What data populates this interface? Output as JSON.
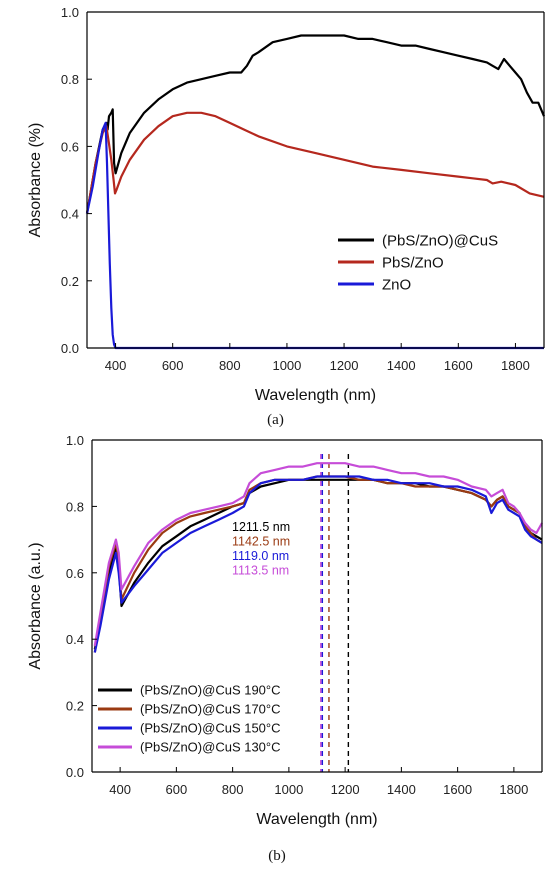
{
  "chart_data": [
    {
      "type": "line",
      "panel_label": "(a)",
      "xlabel": "Wavelength (nm)",
      "ylabel": "Absorbance (%)",
      "xlim": [
        300,
        1900
      ],
      "ylim": [
        0.0,
        1.0
      ],
      "xticks": [
        400,
        600,
        800,
        1000,
        1200,
        1400,
        1600,
        1800
      ],
      "yticks": [
        0.0,
        0.2,
        0.4,
        0.6,
        0.8,
        1.0
      ],
      "legend_position": "center-right",
      "series": [
        {
          "name": "(PbS/ZnO)@CuS",
          "color": "#000000",
          "x": [
            300,
            330,
            355,
            368,
            372,
            377,
            385,
            390,
            395,
            400,
            420,
            450,
            500,
            550,
            600,
            650,
            700,
            750,
            800,
            840,
            860,
            880,
            900,
            950,
            1000,
            1050,
            1100,
            1150,
            1200,
            1250,
            1300,
            1350,
            1400,
            1450,
            1500,
            1550,
            1600,
            1650,
            1700,
            1720,
            1740,
            1760,
            1780,
            1800,
            1820,
            1840,
            1860,
            1880,
            1900
          ],
          "y": [
            0.4,
            0.55,
            0.65,
            0.67,
            0.65,
            0.69,
            0.7,
            0.71,
            0.55,
            0.52,
            0.58,
            0.64,
            0.7,
            0.74,
            0.77,
            0.79,
            0.8,
            0.81,
            0.82,
            0.82,
            0.84,
            0.87,
            0.88,
            0.91,
            0.92,
            0.93,
            0.93,
            0.93,
            0.93,
            0.92,
            0.92,
            0.91,
            0.9,
            0.9,
            0.89,
            0.88,
            0.87,
            0.86,
            0.85,
            0.84,
            0.83,
            0.86,
            0.84,
            0.82,
            0.8,
            0.76,
            0.73,
            0.73,
            0.69
          ]
        },
        {
          "name": "PbS/ZnO",
          "color": "#b5281e",
          "x": [
            300,
            330,
            355,
            368,
            375,
            385,
            393,
            398,
            403,
            420,
            450,
            500,
            550,
            600,
            650,
            700,
            750,
            800,
            850,
            900,
            1000,
            1100,
            1200,
            1300,
            1400,
            1500,
            1600,
            1650,
            1700,
            1720,
            1750,
            1800,
            1850,
            1900
          ],
          "y": [
            0.4,
            0.55,
            0.64,
            0.66,
            0.62,
            0.56,
            0.5,
            0.46,
            0.47,
            0.51,
            0.56,
            0.62,
            0.66,
            0.69,
            0.7,
            0.7,
            0.69,
            0.67,
            0.65,
            0.63,
            0.6,
            0.58,
            0.56,
            0.54,
            0.53,
            0.52,
            0.51,
            0.505,
            0.5,
            0.49,
            0.495,
            0.485,
            0.46,
            0.45
          ]
        },
        {
          "name": "ZnO",
          "color": "#1a1ad8",
          "x": [
            300,
            320,
            340,
            355,
            365,
            370,
            375,
            380,
            385,
            390,
            395,
            400,
            1900
          ],
          "y": [
            0.4,
            0.48,
            0.58,
            0.65,
            0.67,
            0.55,
            0.4,
            0.25,
            0.12,
            0.04,
            0.01,
            0.0,
            0.0
          ]
        }
      ]
    },
    {
      "type": "line",
      "panel_label": "(b)",
      "xlabel": "Wavelength (nm)",
      "ylabel": "Absorbance (a.u.)",
      "xlim": [
        300,
        1900
      ],
      "ylim": [
        0.0,
        1.0
      ],
      "xticks": [
        400,
        600,
        800,
        1000,
        1200,
        1400,
        1600,
        1800
      ],
      "yticks": [
        0.0,
        0.2,
        0.4,
        0.6,
        0.8,
        1.0
      ],
      "legend_position": "lower-left",
      "vlines": [
        {
          "x": 1211.5,
          "label": "1211.5 nm",
          "color": "#000000"
        },
        {
          "x": 1142.5,
          "label": "1142.5 nm",
          "color": "#9a3a12"
        },
        {
          "x": 1119.0,
          "label": "1119.0 nm",
          "color": "#1a1ad8"
        },
        {
          "x": 1113.5,
          "label": "1113.5 nm",
          "color": "#c64cd8"
        }
      ],
      "series": [
        {
          "name": "(PbS/ZnO)@CuS 190°C",
          "color": "#000000",
          "x": [
            310,
            330,
            360,
            385,
            395,
            405,
            450,
            500,
            550,
            600,
            650,
            700,
            750,
            800,
            840,
            860,
            900,
            950,
            1000,
            1050,
            1100,
            1150,
            1200,
            1250,
            1300,
            1350,
            1400,
            1450,
            1500,
            1550,
            1600,
            1650,
            1700,
            1720,
            1740,
            1760,
            1780,
            1800,
            1820,
            1840,
            1860,
            1880,
            1900
          ],
          "y": [
            0.37,
            0.45,
            0.6,
            0.68,
            0.62,
            0.5,
            0.57,
            0.63,
            0.68,
            0.71,
            0.74,
            0.76,
            0.78,
            0.8,
            0.81,
            0.84,
            0.86,
            0.87,
            0.88,
            0.88,
            0.88,
            0.88,
            0.88,
            0.88,
            0.88,
            0.87,
            0.87,
            0.87,
            0.86,
            0.86,
            0.85,
            0.84,
            0.82,
            0.8,
            0.82,
            0.83,
            0.8,
            0.79,
            0.78,
            0.74,
            0.72,
            0.71,
            0.7
          ]
        },
        {
          "name": "(PbS/ZnO)@CuS 170°C",
          "color": "#9a3a12",
          "x": [
            310,
            330,
            360,
            385,
            395,
            405,
            450,
            500,
            550,
            600,
            650,
            700,
            750,
            800,
            840,
            860,
            900,
            950,
            1000,
            1050,
            1100,
            1150,
            1200,
            1250,
            1300,
            1350,
            1400,
            1450,
            1500,
            1550,
            1600,
            1650,
            1700,
            1720,
            1740,
            1760,
            1780,
            1800,
            1820,
            1840,
            1860,
            1880,
            1900
          ],
          "y": [
            0.36,
            0.46,
            0.62,
            0.69,
            0.64,
            0.52,
            0.6,
            0.67,
            0.72,
            0.75,
            0.77,
            0.78,
            0.79,
            0.8,
            0.81,
            0.85,
            0.87,
            0.88,
            0.88,
            0.88,
            0.89,
            0.89,
            0.89,
            0.88,
            0.88,
            0.87,
            0.87,
            0.86,
            0.86,
            0.86,
            0.85,
            0.84,
            0.82,
            0.8,
            0.82,
            0.83,
            0.8,
            0.79,
            0.78,
            0.74,
            0.72,
            0.7,
            0.69
          ]
        },
        {
          "name": "(PbS/ZnO)@CuS 150°C",
          "color": "#1a1ad8",
          "x": [
            310,
            330,
            360,
            385,
            395,
            405,
            450,
            500,
            550,
            600,
            650,
            700,
            750,
            800,
            840,
            860,
            900,
            950,
            1000,
            1050,
            1100,
            1150,
            1200,
            1250,
            1300,
            1350,
            1400,
            1450,
            1500,
            1550,
            1600,
            1650,
            1700,
            1720,
            1740,
            1760,
            1780,
            1800,
            1820,
            1840,
            1860,
            1880,
            1900
          ],
          "y": [
            0.36,
            0.44,
            0.58,
            0.66,
            0.6,
            0.51,
            0.56,
            0.61,
            0.66,
            0.69,
            0.72,
            0.74,
            0.76,
            0.78,
            0.8,
            0.84,
            0.87,
            0.88,
            0.88,
            0.88,
            0.89,
            0.89,
            0.89,
            0.89,
            0.88,
            0.88,
            0.87,
            0.87,
            0.87,
            0.86,
            0.86,
            0.85,
            0.83,
            0.78,
            0.81,
            0.82,
            0.79,
            0.78,
            0.77,
            0.73,
            0.71,
            0.7,
            0.69
          ]
        },
        {
          "name": "(PbS/ZnO)@CuS 130°C",
          "color": "#c64cd8",
          "x": [
            310,
            330,
            360,
            385,
            395,
            405,
            450,
            500,
            550,
            600,
            650,
            700,
            750,
            800,
            840,
            860,
            900,
            950,
            1000,
            1050,
            1100,
            1150,
            1200,
            1250,
            1300,
            1350,
            1400,
            1450,
            1500,
            1550,
            1600,
            1650,
            1700,
            1720,
            1740,
            1760,
            1780,
            1800,
            1820,
            1840,
            1860,
            1880,
            1900
          ],
          "y": [
            0.38,
            0.48,
            0.63,
            0.7,
            0.66,
            0.55,
            0.62,
            0.69,
            0.73,
            0.76,
            0.78,
            0.79,
            0.8,
            0.81,
            0.83,
            0.87,
            0.9,
            0.91,
            0.92,
            0.92,
            0.93,
            0.93,
            0.93,
            0.92,
            0.92,
            0.91,
            0.9,
            0.9,
            0.89,
            0.89,
            0.88,
            0.86,
            0.85,
            0.83,
            0.84,
            0.85,
            0.81,
            0.8,
            0.78,
            0.75,
            0.73,
            0.72,
            0.75
          ]
        }
      ]
    }
  ]
}
